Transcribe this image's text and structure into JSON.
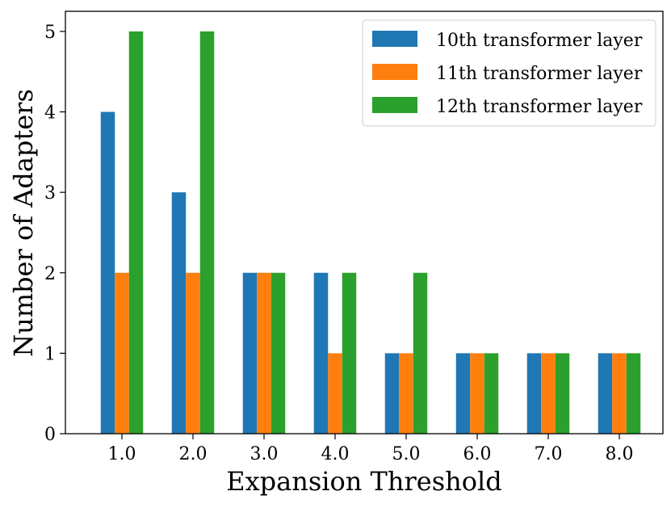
{
  "chart_data": {
    "type": "bar",
    "xlabel": "Expansion Threshold",
    "ylabel": "Number of Adapters",
    "categories": [
      "1.0",
      "2.0",
      "3.0",
      "4.0",
      "5.0",
      "6.0",
      "7.0",
      "8.0"
    ],
    "yticks": [
      "0",
      "1",
      "2",
      "3",
      "4",
      "5"
    ],
    "ylim": [
      0,
      5.25
    ],
    "grid": false,
    "legend_position": "top-right",
    "series": [
      {
        "name": "10th transformer layer",
        "color": "#1f77b4",
        "values": [
          4,
          3,
          2,
          2,
          1,
          1,
          1,
          1
        ]
      },
      {
        "name": "11th transformer layer",
        "color": "#ff7f0e",
        "values": [
          2,
          2,
          2,
          1,
          1,
          1,
          1,
          1
        ]
      },
      {
        "name": "12th transformer layer",
        "color": "#2ca02c",
        "values": [
          5,
          5,
          2,
          2,
          2,
          1,
          1,
          1
        ]
      }
    ]
  }
}
